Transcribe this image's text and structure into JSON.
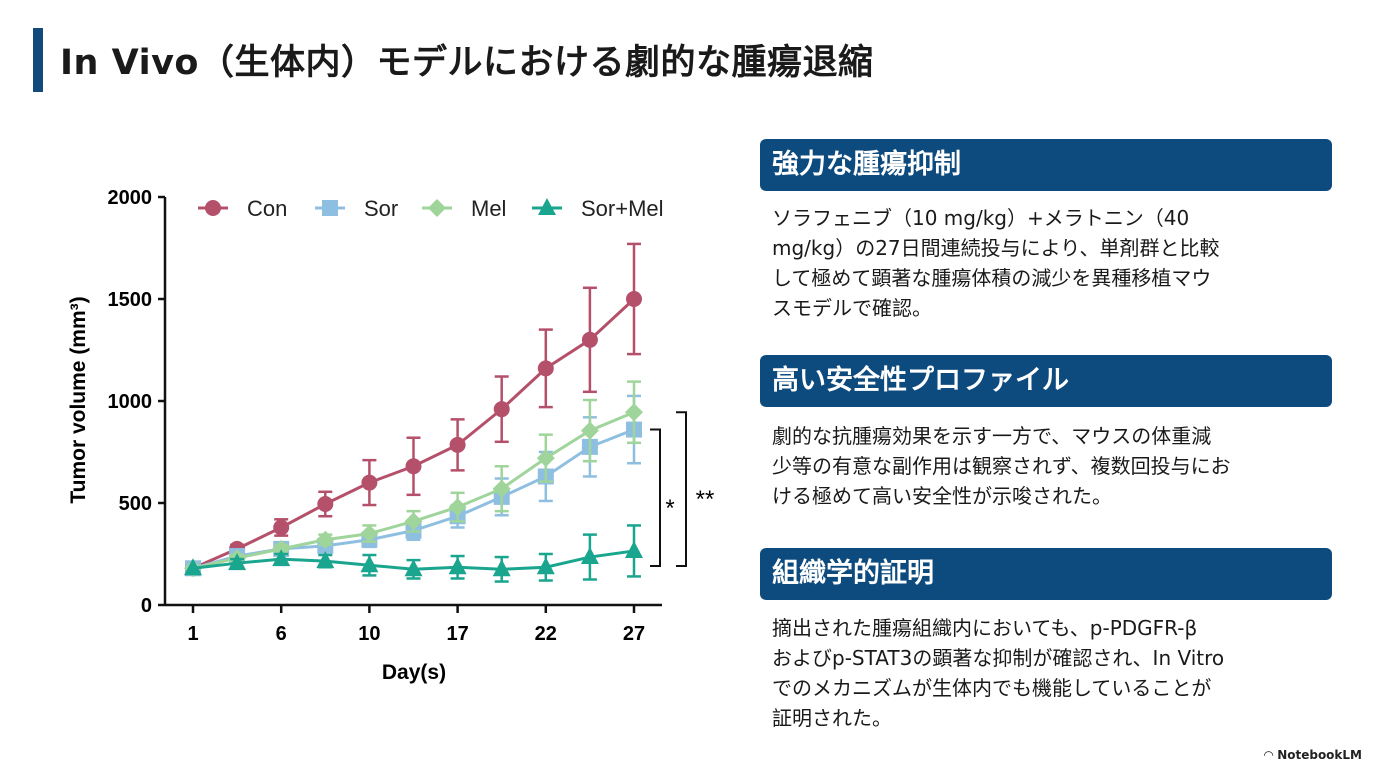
{
  "title": "In Vivo（生体内）モデルにおける劇的な腫瘍退縮",
  "panels": [
    {
      "heading": "強力な腫瘍抑制",
      "lines": [
        "ソラフェニブ（10 mg/kg）+メラトニン（40",
        "mg/kg）の27日間連続投与により、単剤群と比較",
        "して極めて顕著な腫瘍体積の減少を異種移植マウ",
        "スモデルで確認。"
      ]
    },
    {
      "heading": "高い安全性プロファイル",
      "lines": [
        "劇的な抗腫瘍効果を示す一方で、マウスの体重減",
        "少等の有意な副作用は観察されず、複数回投与にお",
        "ける極めて高い安全性が示唆された。"
      ]
    },
    {
      "heading": "組織学的証明",
      "lines": [
        "摘出された腫瘍組織内においても、p-PDGFR-β",
        "およびp-STAT3の顕著な抑制が確認され、In Vitro",
        "でのメカニズムが生体内でも機能していることが",
        "証明された。"
      ]
    }
  ],
  "watermark": "NotebookLM",
  "chart_data": {
    "type": "line",
    "xlabel": "Day(s)",
    "ylabel": "Tumor volume (mm³)",
    "ylim": [
      0,
      2000
    ],
    "yticks": [
      "0",
      "500",
      "1000",
      "1500",
      "2000"
    ],
    "ytick_values": [
      0,
      500,
      1000,
      1500,
      2000
    ],
    "x_points": 11,
    "xtick_labels": [
      "1",
      "6",
      "10",
      "17",
      "22",
      "27"
    ],
    "xtick_indices": [
      0,
      2,
      4,
      6,
      8,
      10
    ],
    "legend_position": "top",
    "series": [
      {
        "name": "Con",
        "color": "#b5506a",
        "marker": "circle",
        "values": [
          180,
          275,
          380,
          495,
          600,
          680,
          785,
          960,
          1160,
          1300,
          1500
        ],
        "err": [
          0,
          20,
          40,
          60,
          110,
          140,
          125,
          160,
          190,
          255,
          270
        ]
      },
      {
        "name": "Sor",
        "color": "#8fbfe0",
        "marker": "square",
        "values": [
          180,
          240,
          275,
          290,
          320,
          365,
          435,
          530,
          630,
          775,
          860
        ],
        "err": [
          0,
          15,
          20,
          30,
          35,
          45,
          55,
          90,
          120,
          145,
          165
        ]
      },
      {
        "name": "Mel",
        "color": "#9fd49a",
        "marker": "diamond",
        "values": [
          180,
          230,
          275,
          320,
          350,
          410,
          480,
          570,
          720,
          855,
          945
        ],
        "err": [
          0,
          15,
          20,
          25,
          40,
          50,
          70,
          110,
          115,
          150,
          150
        ]
      },
      {
        "name": "Sor+Mel",
        "color": "#1aa58e",
        "marker": "triangle",
        "values": [
          180,
          205,
          225,
          215,
          195,
          175,
          185,
          175,
          185,
          235,
          265
        ],
        "err": [
          0,
          20,
          25,
          30,
          50,
          45,
          55,
          60,
          65,
          110,
          125
        ]
      }
    ],
    "annotations": [
      {
        "label": "*",
        "from": "Sor",
        "to": "Sor+Mel"
      },
      {
        "label": "**",
        "from": "Mel",
        "to": "Sor+Mel"
      }
    ]
  }
}
